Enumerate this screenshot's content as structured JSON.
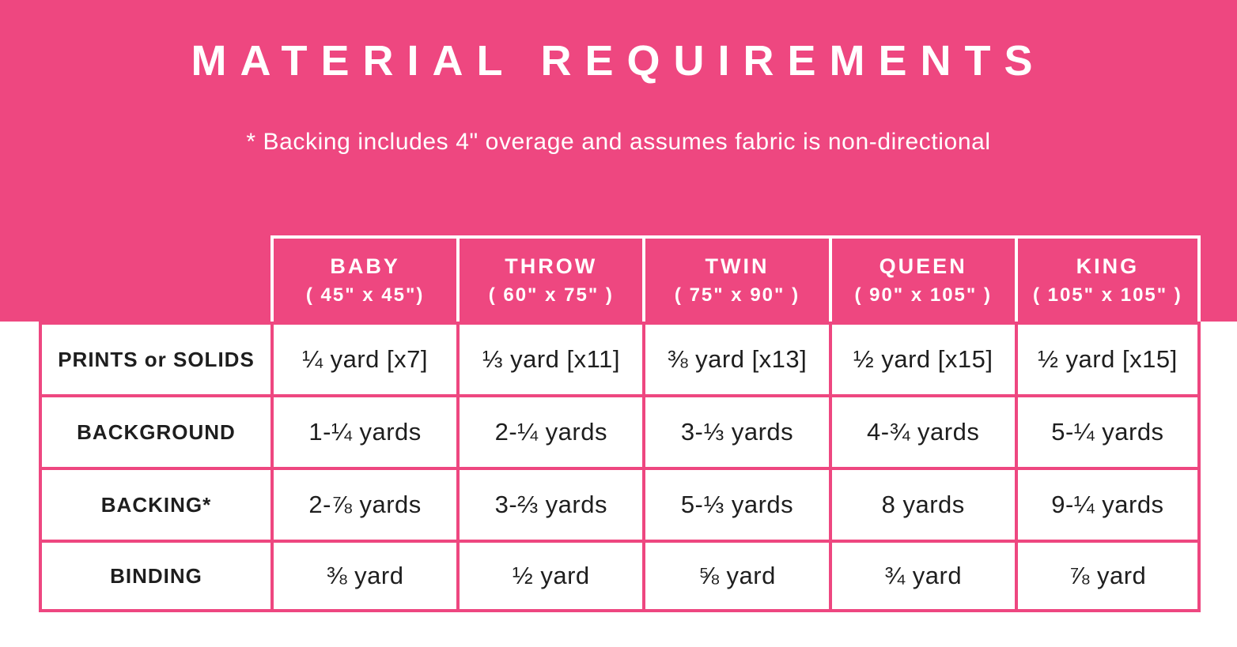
{
  "colors": {
    "pink": "#EE4780",
    "white": "#FFFFFF",
    "text": "#1E1E1E"
  },
  "chart_data": {
    "type": "table",
    "title": "MATERIAL REQUIREMENTS",
    "note": "* Backing includes 4\" overage and assumes fabric is non-directional",
    "columns": [
      {
        "name": "BABY",
        "size": "( 45\" x 45\")"
      },
      {
        "name": "THROW",
        "size": "( 60\" x 75\" )"
      },
      {
        "name": "TWIN",
        "size": "( 75\" x 90\" )"
      },
      {
        "name": "QUEEN",
        "size": "( 90\" x 105\" )"
      },
      {
        "name": "KING",
        "size": "( 105\" x 105\" )"
      }
    ],
    "rows": [
      {
        "label": "PRINTS or SOLIDS",
        "values": [
          "¼ yard [x7]",
          "⅓ yard [x11]",
          "⅜ yard [x13]",
          "½ yard [x15]",
          "½ yard [x15]"
        ]
      },
      {
        "label": "BACKGROUND",
        "values": [
          "1-¼ yards",
          "2-¼ yards",
          "3-⅓ yards",
          "4-¾ yards",
          "5-¼ yards"
        ]
      },
      {
        "label": "BACKING*",
        "values": [
          "2-⅞ yards",
          "3-⅔ yards",
          "5-⅓ yards",
          "8 yards",
          "9-¼ yards"
        ]
      },
      {
        "label": "BINDING",
        "values": [
          "⅜ yard",
          "½ yard",
          "⅝ yard",
          "¾ yard",
          "⅞ yard"
        ]
      }
    ]
  }
}
